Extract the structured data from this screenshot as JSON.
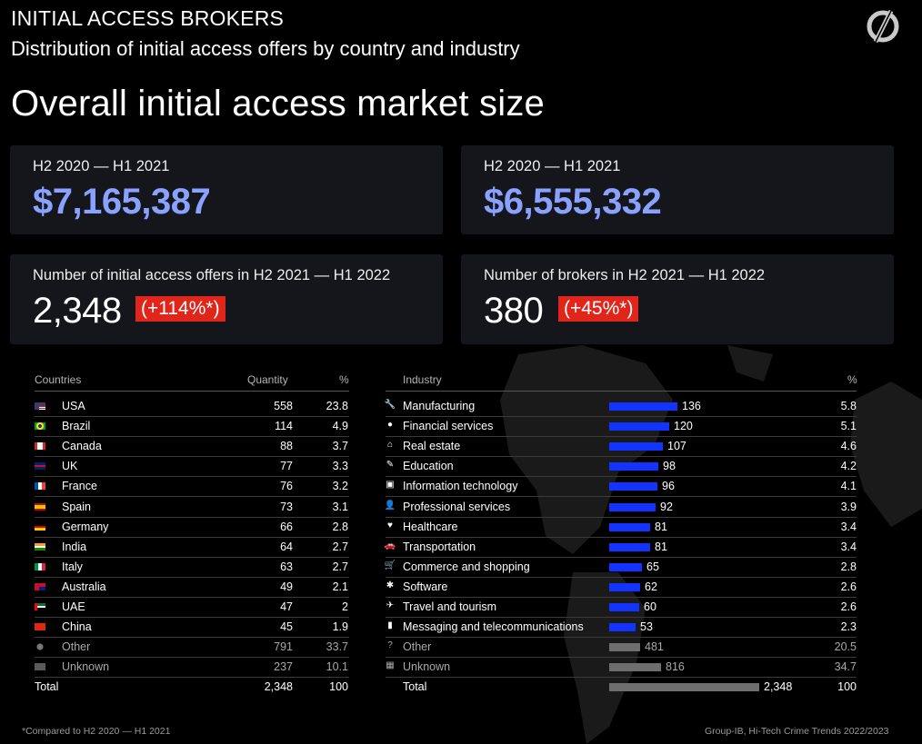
{
  "header": {
    "title": "INITIAL ACCESS BROKERS",
    "subtitle": "Distribution of initial access offers by country and industry",
    "logo_icon": "group-ib-logo-icon"
  },
  "section_title": "Overall initial access market size",
  "cards": [
    {
      "label": "H2 2020 — H1 2021",
      "value": "$7,165,387"
    },
    {
      "label": "H2 2020 — H1 2021",
      "value": "$6,555,332"
    },
    {
      "label": "Number of initial access offers in H2 2021 — H1 2022",
      "value": "2,348",
      "badge": "(+114%*)"
    },
    {
      "label": "Number of brokers in H2 2021 — H1 2022",
      "value": "380",
      "badge": "(+45%*)"
    }
  ],
  "colors": {
    "accent_blue": "#8aa2ff",
    "badge_red": "#e0261b",
    "bar_blue": "#1334ff",
    "bar_grey": "#6e6e6e"
  },
  "countries_table": {
    "headers": {
      "name": "Countries",
      "quantity": "Quantity",
      "percent": "%"
    },
    "rows": [
      {
        "flag": "us-flag-icon",
        "name": "USA",
        "quantity": "558",
        "percent": "23.8"
      },
      {
        "flag": "brazil-flag-icon",
        "name": "Brazil",
        "quantity": "114",
        "percent": "4.9"
      },
      {
        "flag": "canada-flag-icon",
        "name": "Canada",
        "quantity": "88",
        "percent": "3.7"
      },
      {
        "flag": "uk-flag-icon",
        "name": "UK",
        "quantity": "77",
        "percent": "3.3"
      },
      {
        "flag": "france-flag-icon",
        "name": "France",
        "quantity": "76",
        "percent": "3.2"
      },
      {
        "flag": "spain-flag-icon",
        "name": "Spain",
        "quantity": "73",
        "percent": "3.1"
      },
      {
        "flag": "germany-flag-icon",
        "name": "Germany",
        "quantity": "66",
        "percent": "2.8"
      },
      {
        "flag": "india-flag-icon",
        "name": "India",
        "quantity": "64",
        "percent": "2.7"
      },
      {
        "flag": "italy-flag-icon",
        "name": "Italy",
        "quantity": "63",
        "percent": "2.7"
      },
      {
        "flag": "australia-flag-icon",
        "name": "Australia",
        "quantity": "49",
        "percent": "2.1"
      },
      {
        "flag": "uae-flag-icon",
        "name": "UAE",
        "quantity": "47",
        "percent": "2"
      },
      {
        "flag": "china-flag-icon",
        "name": "China",
        "quantity": "45",
        "percent": "1.9"
      },
      {
        "flag": "other-globe-icon",
        "name": "Other",
        "quantity": "791",
        "percent": "33.7",
        "dim": true
      },
      {
        "flag": "unknown-flag-icon",
        "name": "Unknown",
        "quantity": "237",
        "percent": "10.1",
        "dim": true
      }
    ],
    "total": {
      "name": "Total",
      "quantity": "2,348",
      "percent": "100"
    }
  },
  "industry_table": {
    "headers": {
      "name": "Industry",
      "percent": "%"
    },
    "rows": [
      {
        "icon": "wrench-icon",
        "glyph": "🔧",
        "name": "Manufacturing",
        "quantity": 136,
        "percent": "5.8"
      },
      {
        "icon": "coin-icon",
        "glyph": "●",
        "name": "Financial services",
        "quantity": 120,
        "percent": "5.1"
      },
      {
        "icon": "house-icon",
        "glyph": "⌂",
        "name": "Real estate",
        "quantity": 107,
        "percent": "4.6"
      },
      {
        "icon": "pencil-icon",
        "glyph": "✎",
        "name": "Education",
        "quantity": 98,
        "percent": "4.2"
      },
      {
        "icon": "chip-icon",
        "glyph": "▣",
        "name": "Information technology",
        "quantity": 96,
        "percent": "4.1"
      },
      {
        "icon": "person-icon",
        "glyph": "👤",
        "name": "Professional services",
        "quantity": 92,
        "percent": "3.9"
      },
      {
        "icon": "heart-icon",
        "glyph": "♥",
        "name": "Healthcare",
        "quantity": 81,
        "percent": "3.4"
      },
      {
        "icon": "car-icon",
        "glyph": "🚗",
        "name": "Transportation",
        "quantity": 81,
        "percent": "3.4"
      },
      {
        "icon": "cart-icon",
        "glyph": "🛒",
        "name": "Commerce and shopping",
        "quantity": 65,
        "percent": "2.8"
      },
      {
        "icon": "puzzle-icon",
        "glyph": "✱",
        "name": "Software",
        "quantity": 62,
        "percent": "2.6"
      },
      {
        "icon": "airplane-icon",
        "glyph": "✈",
        "name": "Travel and tourism",
        "quantity": 60,
        "percent": "2.6"
      },
      {
        "icon": "signal-bars-icon",
        "glyph": "▮",
        "name": "Messaging and telecommunications",
        "quantity": 53,
        "percent": "2.3"
      },
      {
        "icon": "question-icon",
        "glyph": "?",
        "name": "Other",
        "quantity": 481,
        "percent": "20.5",
        "dim": true
      },
      {
        "icon": "grid-icon",
        "glyph": "▦",
        "name": "Unknown",
        "quantity": 816,
        "percent": "34.7",
        "dim": true
      }
    ],
    "total": {
      "name": "Total",
      "quantity": 2348,
      "quantity_label": "2,348",
      "percent": "100"
    }
  },
  "footer": {
    "note": "*Compared to H2 2020 — H1 2021",
    "source": "Group-IB, Hi-Tech Crime Trends 2022/2023"
  }
}
